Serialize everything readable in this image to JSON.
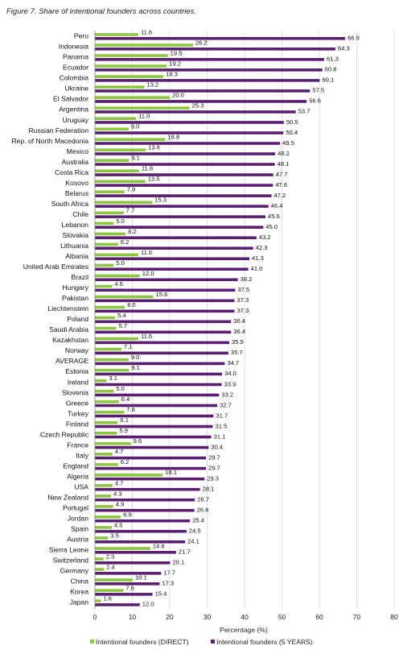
{
  "chart_data": {
    "type": "bar",
    "orientation": "horizontal",
    "title": "Figure 7. Share of intentional founders across countries.",
    "xlabel": "Percentage (%)",
    "ylabel": "",
    "xlim": [
      0,
      80
    ],
    "xticks": [
      0,
      10,
      20,
      30,
      40,
      50,
      60,
      70,
      80
    ],
    "grid": true,
    "legend_position": "bottom",
    "categories": [
      "Peru",
      "Indonesia",
      "Panama",
      "Ecuador",
      "Colombia",
      "Ukraine",
      "El Salvador",
      "Argentina",
      "Uruguay",
      "Russian Federation",
      "Rep. of North Macedonia",
      "Mexico",
      "Australia",
      "Costa Rica",
      "Kosovo",
      "Belarus",
      "South Africa",
      "Chile",
      "Lebanon",
      "Slovakia",
      "Lithuania",
      "Albania",
      "United Arab Emirates",
      "Brazil",
      "Hungary",
      "Pakistan",
      "Liechtenstein",
      "Poland",
      "Saudi Arabia",
      "Kazakhstan",
      "Norway",
      "AVERAGE",
      "Estonia",
      "Ireland",
      "Slovenia",
      "Greece",
      "Turkey",
      "Finland",
      "Czech Republic",
      "France",
      "Italy",
      "England",
      "Algeria",
      "USA",
      "New Zealand",
      "Portugal",
      "Jordan",
      "Spain",
      "Austria",
      "Sierra Leone",
      "Switzerland",
      "Germany",
      "China",
      "Korea",
      "Japan"
    ],
    "series": [
      {
        "name": "Intentional founders (DIRECT)",
        "color": "#8dc63f",
        "values": [
          11.6,
          26.2,
          19.5,
          19.2,
          18.3,
          13.2,
          20.0,
          25.3,
          11.0,
          9.0,
          18.8,
          13.6,
          9.1,
          11.8,
          13.5,
          7.9,
          15.3,
          7.7,
          5.0,
          8.2,
          6.2,
          11.6,
          5.0,
          12.0,
          4.6,
          15.6,
          8.0,
          5.4,
          5.7,
          11.6,
          7.1,
          9.0,
          9.1,
          3.1,
          5.0,
          6.4,
          7.8,
          6.1,
          5.9,
          9.6,
          4.7,
          6.2,
          18.1,
          4.7,
          4.3,
          4.9,
          6.9,
          4.5,
          3.5,
          14.8,
          2.3,
          2.4,
          10.1,
          7.6,
          1.6
        ],
        "labels": [
          "11.6",
          "26.2",
          "19.5",
          "19.2",
          "18.3",
          "13.2",
          "20.0",
          "25.3",
          "11.0",
          "9.0",
          "18.8",
          "13.6",
          "9.1",
          "11.8",
          "13.5",
          "7.9",
          "15.3",
          "7.7",
          "5.0",
          "8.2",
          "6.2",
          "11.6",
          "5.0",
          "12.0",
          "4.6",
          "15.6",
          "8.0",
          "5.4",
          "5.7",
          "11.6",
          "7.1",
          "9.0",
          "9.1",
          "3.1",
          "5.0",
          "6.4",
          "7.8",
          "6.1",
          "5.9",
          "9.6",
          "4.7",
          "6.2",
          "18.1",
          "4.7",
          "4.3",
          "4.9",
          "6.9",
          "4.5",
          "3.5",
          "14.8",
          "2.3",
          "2.4",
          "10.1",
          "7.6",
          "1.6"
        ]
      },
      {
        "name": "Intentional founders (5 YEARS)",
        "color": "#5b1f72",
        "values": [
          66.9,
          64.3,
          61.3,
          60.8,
          60.1,
          57.5,
          56.6,
          53.7,
          50.5,
          50.4,
          49.5,
          48.2,
          48.1,
          47.7,
          47.6,
          47.2,
          46.4,
          45.6,
          45.0,
          43.2,
          42.3,
          41.3,
          41.0,
          38.2,
          37.5,
          37.3,
          37.3,
          36.4,
          36.4,
          35.9,
          35.7,
          34.7,
          34.0,
          33.9,
          33.2,
          32.7,
          31.7,
          31.5,
          31.1,
          30.4,
          29.7,
          29.7,
          29.3,
          28.1,
          26.7,
          26.6,
          25.4,
          24.5,
          24.1,
          21.7,
          20.1,
          17.7,
          17.3,
          15.4,
          12.0
        ],
        "labels": [
          "66.9",
          "64.3",
          "61.3",
          "60.8",
          "60.1",
          "57.5",
          "56.6",
          "53.7",
          "50.5",
          "50.4",
          "49.5",
          "48.2",
          "48.1",
          "47.7",
          "47.6",
          "47.2",
          "46.4",
          "45.6",
          "45.0",
          "43.2",
          "42.3",
          "41.3",
          "41.0",
          "38.2",
          "37.5",
          "37.3",
          "37.3",
          "36.4",
          "36.4",
          "35.9",
          "35.7",
          "34.7",
          "34.0",
          "33.9",
          "33.2",
          "32.7",
          "31.7",
          "31.5",
          "31.1",
          "30.4",
          "29.7",
          "29.7",
          "29.3",
          "28.1",
          "26.7",
          "26.6",
          "25.4",
          "24.5",
          "24.1",
          "21.7",
          "20.1",
          "17.7",
          "17.3",
          "15.4",
          "12.0"
        ]
      }
    ]
  }
}
